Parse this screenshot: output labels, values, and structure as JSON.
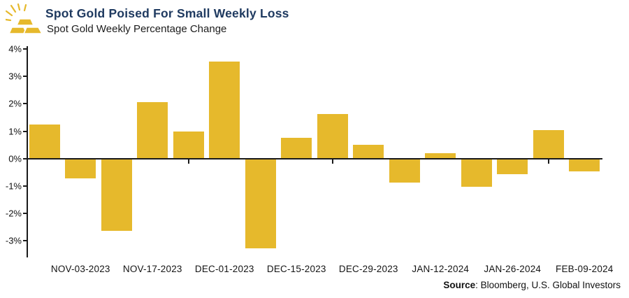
{
  "header": {
    "title": "Spot Gold Poised For Small Weekly Loss",
    "subtitle": "Spot Gold Weekly Percentage Change"
  },
  "footer": {
    "source_label": "Source",
    "source_rest": ": Bloomberg, U.S. Global Investors"
  },
  "colors": {
    "bar": "#E6B92C",
    "title": "#1F3A60",
    "axis": "#1a1a1a",
    "icon_gold": "#E6B92C"
  },
  "icon": {
    "name": "gold-bars-icon"
  },
  "chart_data": {
    "type": "bar",
    "title": "Spot Gold Poised For Small Weekly Loss",
    "subtitle": "Spot Gold Weekly Percentage Change",
    "values": [
      1.25,
      -0.7,
      -2.6,
      2.05,
      1.0,
      3.55,
      -3.25,
      0.75,
      1.63,
      0.5,
      -0.85,
      0.2,
      -1.0,
      -0.55,
      1.05,
      -0.45
    ],
    "x_tick_labels": [
      "NOV-03-2023",
      "NOV-17-2023",
      "DEC-01-2023",
      "DEC-15-2023",
      "DEC-29-2023",
      "JAN-12-2024",
      "JAN-26-2024",
      "FEB-09-2024"
    ],
    "label_every": 2,
    "label_offset": 1,
    "yticks": [
      4,
      3,
      2,
      1,
      0,
      -1,
      -2,
      -3
    ],
    "ytick_suffix": "%",
    "ylim": [
      -3.6,
      4.1
    ],
    "grid": false,
    "legend": null,
    "xlabel": "",
    "ylabel": ""
  }
}
